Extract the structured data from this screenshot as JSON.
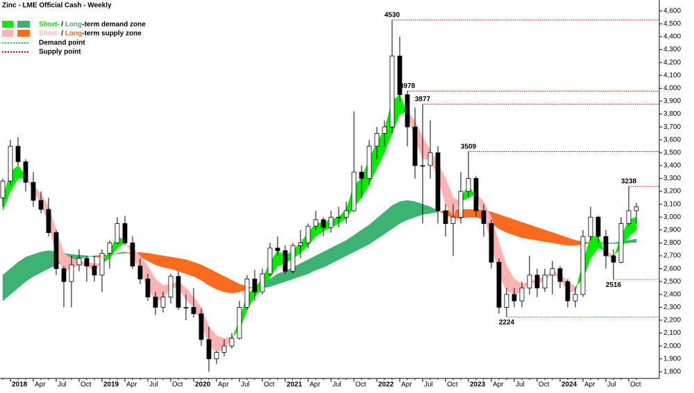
{
  "chart_data": {
    "type": "candlestick",
    "title": "Zinc - LME Official Cash - Weekly",
    "legend": {
      "demand": [
        "Short-",
        " / ",
        "Long",
        "-term demand zone"
      ],
      "supply": [
        "Short-",
        " / ",
        "Long",
        "-term supply zone"
      ],
      "demand_point": "Demand point",
      "supply_point": "Supply point"
    },
    "categories": [
      null,
      "2018",
      null,
      null,
      "Apr",
      null,
      null,
      "Jul",
      null,
      null,
      "Oct",
      null,
      null,
      "2019",
      null,
      null,
      "Apr",
      null,
      null,
      "Jul",
      null,
      null,
      "Oct",
      null,
      null,
      "2020",
      null,
      null,
      "Apr",
      null,
      null,
      "Jul",
      null,
      null,
      "Oct",
      null,
      null,
      "2021",
      null,
      null,
      "Apr",
      null,
      null,
      "Jul",
      null,
      null,
      "Oct",
      null,
      null,
      "2022",
      null,
      null,
      "Apr",
      null,
      null,
      "Jul",
      null,
      null,
      "Oct",
      null,
      null,
      "2023",
      null,
      null,
      "Apr",
      null,
      null,
      "Jul",
      null,
      null,
      "Oct",
      null,
      null,
      "2024",
      null,
      null,
      "Apr",
      null,
      null,
      "Jul",
      null,
      null,
      "Oct",
      null
    ],
    "open": [
      3150,
      3280,
      3550,
      3430,
      3270,
      3130,
      3060,
      2880,
      2600,
      2500,
      2630,
      2680,
      2620,
      2550,
      2720,
      2800,
      2950,
      2800,
      2620,
      2520,
      2380,
      2300,
      2380,
      2540,
      2300,
      2300,
      2250,
      2050,
      1900,
      1950,
      2000,
      2060,
      2300,
      2520,
      2420,
      2560,
      2760,
      2740,
      2580,
      2780,
      2800,
      2930,
      2980,
      2920,
      3000,
      3000,
      3050,
      3350,
      3300,
      3550,
      3650,
      3700,
      4250,
      3950,
      3700,
      3400,
      3400,
      3500,
      3050,
      2950,
      3000,
      3200,
      3300,
      3050,
      2950,
      2650,
      2300,
      2400,
      2350,
      2450,
      2550,
      2450,
      2550,
      2600,
      2500,
      2350,
      2400,
      2850,
      3000,
      2850,
      2700,
      2650,
      2950,
      3050
    ],
    "high": [
      3300,
      3600,
      3620,
      3450,
      3350,
      3200,
      3150,
      2900,
      2620,
      2700,
      2750,
      2700,
      2700,
      2750,
      2820,
      3000,
      3010,
      2850,
      2680,
      2560,
      2420,
      2420,
      2560,
      2580,
      2400,
      2450,
      2290,
      2150,
      1960,
      2050,
      2100,
      2350,
      2550,
      2590,
      2600,
      2800,
      2850,
      2780,
      2800,
      2900,
      2950,
      3050,
      3000,
      3050,
      3080,
      3120,
      3820,
      3400,
      3600,
      3700,
      3750,
      4530,
      4400,
      3978,
      3850,
      3877,
      3750,
      3550,
      3100,
      3100,
      3350,
      3509,
      3320,
      3100,
      2980,
      2680,
      2450,
      2450,
      2500,
      2700,
      2600,
      2600,
      2660,
      2620,
      2520,
      2450,
      2900,
      3080,
      3010,
      2900,
      2750,
      3000,
      3238,
      3110
    ],
    "low": [
      3080,
      3250,
      3400,
      3200,
      3080,
      3030,
      2850,
      2550,
      2300,
      2300,
      2580,
      2500,
      2500,
      2420,
      2600,
      2790,
      2780,
      2600,
      2480,
      2350,
      2240,
      2260,
      2330,
      2280,
      2200,
      2220,
      2000,
      1800,
      1860,
      1920,
      1980,
      2050,
      2280,
      2350,
      2400,
      2540,
      2700,
      2560,
      2560,
      2680,
      2760,
      2900,
      2850,
      2880,
      2920,
      2950,
      3040,
      3150,
      3250,
      3450,
      3550,
      3650,
      3900,
      3550,
      3300,
      2950,
      3300,
      2950,
      2850,
      2700,
      2950,
      3150,
      3000,
      2850,
      2600,
      2250,
      2224,
      2300,
      2300,
      2400,
      2380,
      2420,
      2400,
      2450,
      2300,
      2300,
      2380,
      2820,
      2800,
      2600,
      2516,
      2640,
      2930,
      2950
    ],
    "close": [
      3280,
      3550,
      3430,
      3270,
      3130,
      3060,
      2880,
      2600,
      2500,
      2630,
      2680,
      2620,
      2550,
      2720,
      2800,
      2950,
      2800,
      2620,
      2520,
      2380,
      2300,
      2380,
      2540,
      2300,
      2300,
      2250,
      2050,
      1900,
      1950,
      2000,
      2060,
      2300,
      2520,
      2420,
      2560,
      2760,
      2740,
      2580,
      2780,
      2800,
      2930,
      2980,
      2920,
      3000,
      3000,
      3050,
      3350,
      3300,
      3550,
      3650,
      3700,
      4250,
      3950,
      3700,
      3400,
      3400,
      3500,
      3050,
      2950,
      3000,
      3200,
      3300,
      3050,
      2950,
      2650,
      2300,
      2400,
      2350,
      2450,
      2550,
      2450,
      2550,
      2600,
      2500,
      2350,
      2400,
      2850,
      3000,
      2850,
      2700,
      2650,
      2950,
      3050,
      3080
    ],
    "up_color": "#ffffff",
    "down_color": "#000000",
    "zones": [
      {
        "fast": [
          2550,
          2600,
          2650,
          2690,
          2710,
          2730,
          2740,
          2730,
          2720,
          2710,
          2705,
          2700,
          2690,
          2690,
          2700,
          2720,
          2730,
          2710,
          2690,
          2660,
          2630,
          2610,
          2600,
          2580,
          2560,
          2540,
          2510,
          2470,
          2440,
          2420,
          2410,
          2420,
          2440,
          2460,
          2490,
          2520,
          2560,
          2580,
          2610,
          2640,
          2670,
          2700,
          2730,
          2760,
          2790,
          2820,
          2860,
          2900,
          2940,
          2990,
          3040,
          3090,
          3120,
          3130,
          3120,
          3100,
          3080,
          3050,
          3020,
          2990,
          2990,
          3000,
          3000,
          2980,
          2950,
          2910,
          2880,
          2860,
          2840,
          2830,
          2820,
          2810,
          2800,
          2790,
          2780,
          2780,
          2790,
          2800,
          2805,
          2800,
          2800,
          2810,
          2820,
          2830
        ],
        "slow": [
          2350,
          2400,
          2450,
          2500,
          2540,
          2570,
          2600,
          2630,
          2650,
          2660,
          2680,
          2690,
          2700,
          2705,
          2710,
          2715,
          2720,
          2725,
          2725,
          2720,
          2710,
          2700,
          2690,
          2680,
          2670,
          2650,
          2630,
          2600,
          2570,
          2540,
          2510,
          2480,
          2460,
          2450,
          2450,
          2460,
          2480,
          2500,
          2520,
          2540,
          2560,
          2590,
          2610,
          2640,
          2670,
          2700,
          2730,
          2760,
          2790,
          2830,
          2870,
          2910,
          2950,
          2980,
          3000,
          3020,
          3030,
          3040,
          3050,
          3060,
          3060,
          3060,
          3060,
          3055,
          3040,
          3020,
          3000,
          2980,
          2960,
          2940,
          2920,
          2900,
          2880,
          2860,
          2840,
          2820,
          2810,
          2800,
          2795,
          2795,
          2795,
          2795,
          2800,
          2805
        ],
        "demand_color": "#3cb371",
        "supply_color": "#ff6a1f"
      },
      {
        "fast": [
          3150,
          3350,
          3400,
          3320,
          3200,
          3100,
          2950,
          2700,
          2580,
          2600,
          2630,
          2620,
          2580,
          2650,
          2740,
          2850,
          2820,
          2700,
          2580,
          2450,
          2350,
          2360,
          2460,
          2440,
          2360,
          2300,
          2180,
          2000,
          1950,
          1980,
          2050,
          2200,
          2400,
          2450,
          2520,
          2650,
          2740,
          2700,
          2740,
          2800,
          2880,
          2950,
          2960,
          2980,
          3000,
          3060,
          3250,
          3300,
          3450,
          3580,
          3680,
          3900,
          3950,
          3800,
          3600,
          3450,
          3450,
          3300,
          3100,
          3000,
          3150,
          3250,
          3150,
          3000,
          2800,
          2550,
          2430,
          2400,
          2420,
          2500,
          2480,
          2510,
          2560,
          2520,
          2420,
          2420,
          2650,
          2850,
          2850,
          2700,
          2680,
          2850,
          2980,
          3000
        ],
        "slow": [
          3050,
          3200,
          3300,
          3300,
          3250,
          3180,
          3080,
          2900,
          2720,
          2680,
          2660,
          2650,
          2640,
          2640,
          2680,
          2760,
          2800,
          2760,
          2700,
          2620,
          2520,
          2470,
          2480,
          2500,
          2450,
          2380,
          2300,
          2150,
          2080,
          2060,
          2070,
          2120,
          2280,
          2380,
          2450,
          2530,
          2620,
          2640,
          2680,
          2720,
          2780,
          2850,
          2890,
          2920,
          2950,
          2990,
          3080,
          3150,
          3250,
          3380,
          3500,
          3650,
          3800,
          3820,
          3750,
          3620,
          3520,
          3420,
          3300,
          3150,
          3120,
          3150,
          3180,
          3120,
          3000,
          2800,
          2620,
          2520,
          2480,
          2500,
          2520,
          2540,
          2580,
          2560,
          2500,
          2460,
          2520,
          2680,
          2760,
          2740,
          2700,
          2760,
          2850,
          2900
        ],
        "demand_color": "#00ee00",
        "supply_color": "#ffb3b3"
      }
    ],
    "supply_points": [
      4530,
      3978,
      3877,
      3509,
      3238
    ],
    "demand_points": [
      2224,
      2516
    ],
    "supply_point_color": "#e00000",
    "demand_point_color": "#22cc22",
    "ylim": [
      1705,
      4685
    ],
    "yticks": [
      {
        "value": 1800,
        "label": "1,800"
      },
      {
        "value": 1900,
        "label": "1,900"
      },
      {
        "value": 2000,
        "label": "2,000"
      },
      {
        "value": 2100,
        "label": "2,100"
      },
      {
        "value": 2200,
        "label": "2,200"
      },
      {
        "value": 2300,
        "label": "2,300"
      },
      {
        "value": 2400,
        "label": "2,400"
      },
      {
        "value": 2500,
        "label": "2,500"
      },
      {
        "value": 2600,
        "label": "2,600"
      },
      {
        "value": 2700,
        "label": "2,700"
      },
      {
        "value": 2800,
        "label": "2,800"
      },
      {
        "value": 2900,
        "label": "2,900"
      },
      {
        "value": 3000,
        "label": "3,000"
      },
      {
        "value": 3100,
        "label": "3,100"
      },
      {
        "value": 3200,
        "label": "3,200"
      },
      {
        "value": 3300,
        "label": "3,300"
      },
      {
        "value": 3400,
        "label": "3,400"
      },
      {
        "value": 3500,
        "label": "3,500"
      },
      {
        "value": 3600,
        "label": "3,600"
      },
      {
        "value": 3700,
        "label": "3,700"
      },
      {
        "value": 3800,
        "label": "3,800"
      },
      {
        "value": 3900,
        "label": "3,900"
      },
      {
        "value": 4000,
        "label": "4,000"
      },
      {
        "value": 4100,
        "label": "4,100"
      },
      {
        "value": 4200,
        "label": "4,200"
      },
      {
        "value": 4300,
        "label": "4,300"
      },
      {
        "value": 4400,
        "label": "4,400"
      },
      {
        "value": 4500,
        "label": "4,500"
      },
      {
        "value": 4600,
        "label": "4,600"
      }
    ],
    "yaxis_side": "right"
  }
}
